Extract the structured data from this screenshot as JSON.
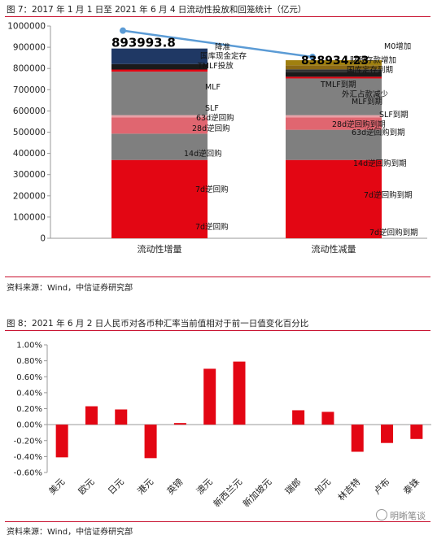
{
  "fig7": {
    "caption": "图 7：2017 年 1 月 1 日至 2021 年 6 月 4 日流动性投放和回笼统计（亿元）",
    "source": "资料来源：Wind，中信证券研究部"
  },
  "fig8": {
    "caption": "图 8：2021 年 6 月 2 日人民币对各币种汇率当前值相对于前一日值变化百分比",
    "source": "资料来源：Wind，中信证券研究部"
  },
  "watermark": "明晰笔谈",
  "chart_data": [
    {
      "type": "bar",
      "stacked": true,
      "categories": [
        "流动性增量",
        "流动性减量"
      ],
      "ylim": [
        0,
        1000000
      ],
      "yticks": [
        0,
        100000,
        200000,
        300000,
        400000,
        500000,
        600000,
        700000,
        800000,
        900000,
        1000000
      ],
      "totals": [
        893993.8,
        838934.23
      ],
      "total_labels": [
        "893993.8",
        "838934.23"
      ],
      "total_line_color": "#5b9bd5",
      "grid": false,
      "legend": "none",
      "stacks": [
        {
          "category": "流动性增量",
          "segments": [
            {
              "value": 369000,
              "color": "#e30613"
            },
            {
              "value": 124000,
              "color": "#7f7f7f"
            },
            {
              "value": 77000,
              "color": "#e06670"
            },
            {
              "value": 10000,
              "color": "#e8a0a6"
            },
            {
              "value": 205000,
              "color": "#808080"
            },
            {
              "value": 10000,
              "color": "#e30613"
            },
            {
              "value": 26000,
              "color": "#1a1a1a"
            },
            {
              "value": 72994,
              "color": "#1f3864"
            }
          ],
          "annotations": [
            "7d逆回购",
            "7d逆回购",
            "14d逆回购",
            "28d逆回购",
            "63d逆回购",
            "SLF",
            "MLF",
            "TMLF投放",
            "国库现金定存",
            "降准"
          ]
        },
        {
          "category": "流动性减量",
          "segments": [
            {
              "value": 369000,
              "color": "#e30613"
            },
            {
              "value": 142000,
              "color": "#7f7f7f"
            },
            {
              "value": 59000,
              "color": "#e06670"
            },
            {
              "value": 10000,
              "color": "#e8a0a6"
            },
            {
              "value": 173000,
              "color": "#808080"
            },
            {
              "value": 8000,
              "color": "#e30613"
            },
            {
              "value": 21000,
              "color": "#1a1a1a"
            },
            {
              "value": 14000,
              "color": "#333333"
            },
            {
              "value": 19000,
              "color": "#8b6914"
            },
            {
              "value": 23934,
              "color": "#a08010"
            }
          ],
          "annotations": [
            "7d逆回购到期",
            "7d逆回购到期",
            "14d逆回购到期",
            "63d逆回购到期",
            "28d逆回购到期",
            "SLF到期",
            "MLF到期",
            "外汇占款减少",
            "TMLF到期",
            "国库定存到期",
            "财政存款增加",
            "M0增加"
          ]
        }
      ]
    },
    {
      "type": "bar",
      "categories": [
        "美元",
        "欧元",
        "日元",
        "港元",
        "英镑",
        "澳元",
        "新西兰元",
        "新加坡元",
        "瑞郎",
        "加元",
        "林吉特",
        "卢布",
        "泰铢"
      ],
      "values": [
        -0.41,
        0.23,
        0.19,
        -0.42,
        0.02,
        0.7,
        0.79,
        0.0,
        0.18,
        0.16,
        -0.34,
        -0.23,
        -0.18
      ],
      "ylim": [
        -0.6,
        1.0
      ],
      "yticks": [
        "-0.60%",
        "-0.40%",
        "-0.20%",
        "0.00%",
        "0.20%",
        "0.40%",
        "0.60%",
        "0.80%",
        "1.00%"
      ],
      "color": "#e30613",
      "grid": false,
      "legend": "none"
    }
  ]
}
